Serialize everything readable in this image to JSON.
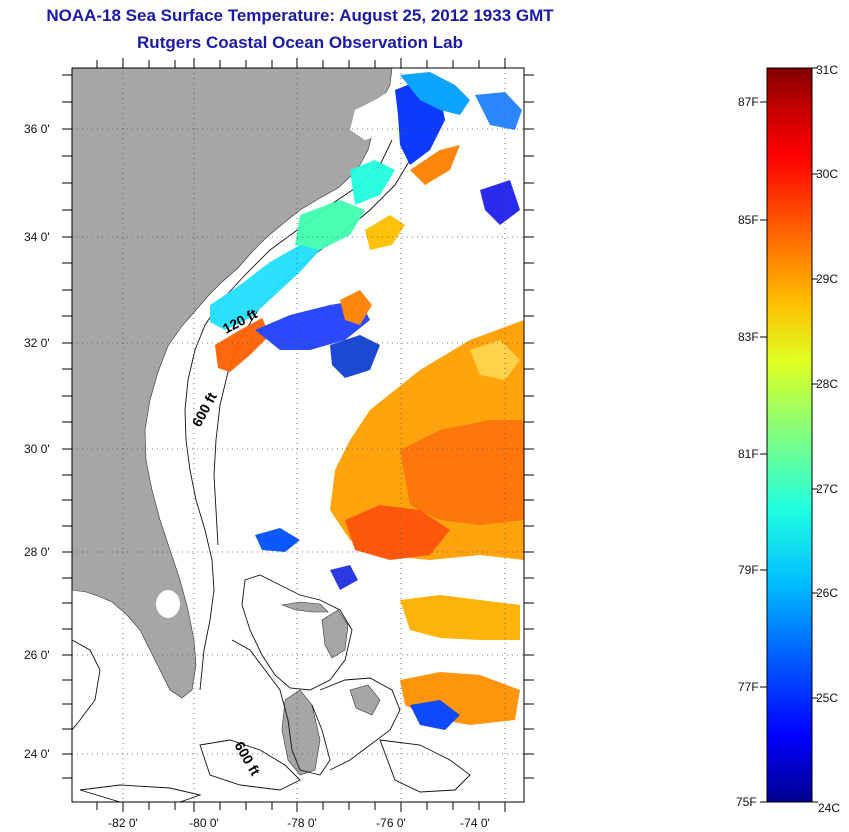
{
  "title": {
    "line1": "NOAA-18 Sea Surface Temperature:  August 25, 2012 1933 GMT",
    "line2": "Rutgers Coastal Ocean Observation Lab"
  },
  "map": {
    "lat_labels": [
      "36 0'",
      "34 0'",
      "32 0'",
      "30 0'",
      "28 0'",
      "26 0'",
      "24 0'"
    ],
    "lon_labels": [
      "-82 0'",
      "-80 0'",
      "-78 0'",
      "-76 0'",
      "-74 0'"
    ],
    "contours": [
      "120 ft",
      "600 ft",
      "600 ft"
    ],
    "colors": {
      "land": "#a6a6a6",
      "grid": "#555555",
      "frame": "#000000"
    }
  },
  "colorbar": {
    "fahrenheit": [
      "87F",
      "85F",
      "83F",
      "81F",
      "79F",
      "77F",
      "75F"
    ],
    "celsius": [
      "31C",
      "30C",
      "29C",
      "28C",
      "27C",
      "26C",
      "25C",
      "24C"
    ],
    "scale": [
      "#00008f",
      "#0000ff",
      "#0060ff",
      "#00bfff",
      "#20ffdf",
      "#80ff80",
      "#dfff20",
      "#ffbf00",
      "#ff6000",
      "#ff0000",
      "#bf0000",
      "#800000"
    ]
  }
}
